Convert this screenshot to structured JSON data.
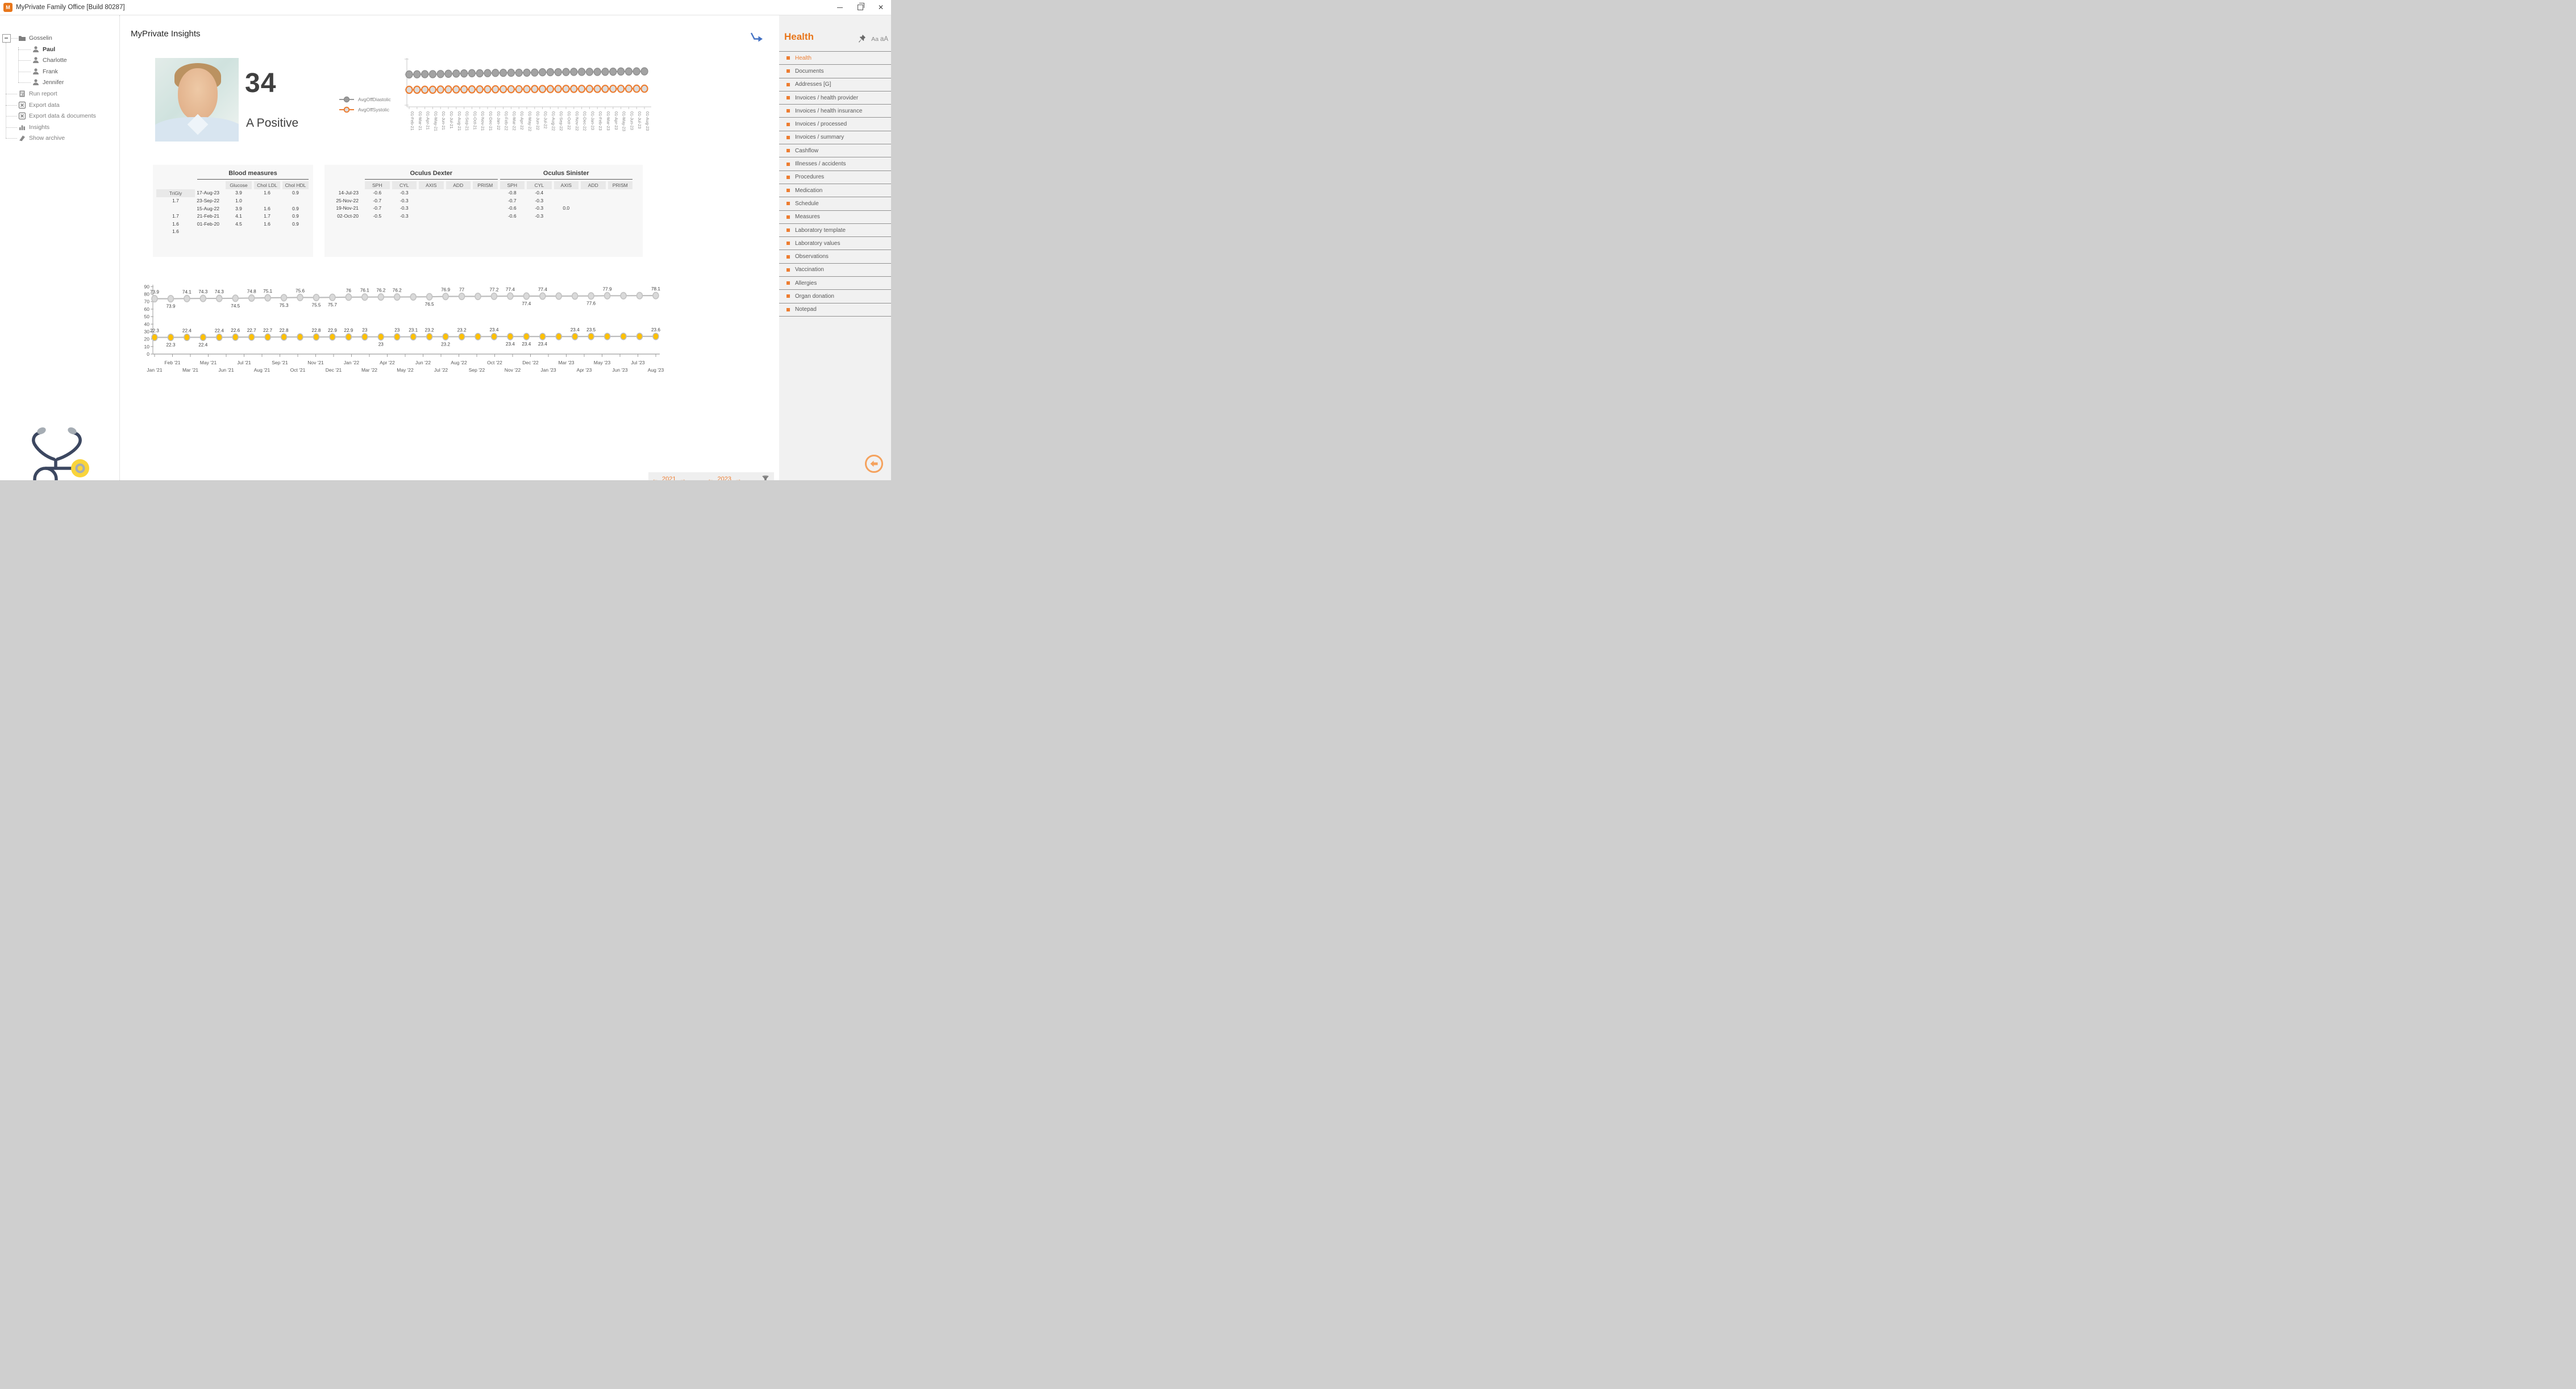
{
  "window": {
    "title": "MyPrivate Family Office [Build 80287]",
    "app_icon_text": "M",
    "controls": {
      "minimize": "minimize",
      "restore": "restore",
      "close": "close"
    }
  },
  "tree": {
    "root": "Gosselin",
    "members": [
      "Paul",
      "Charlotte",
      "Frank",
      "Jennifer"
    ],
    "selected_member": "Paul",
    "actions": [
      "Run report",
      "Export data",
      "Export data & documents",
      "Insights",
      "Show archive"
    ]
  },
  "canvas": {
    "title": "MyPrivate Insights",
    "age": "34",
    "blood_type": "A Positive"
  },
  "colors": {
    "accent_orange": "#ED7D31",
    "heading_orange": "#E8761B",
    "series_gray": "#A3A3A3",
    "marker_yellow": "#FFC000",
    "label_dark": "#404040",
    "muted_gray": "#7F7F7F"
  },
  "chart_data": [
    {
      "type": "line",
      "name": "blood-pressure-summary",
      "legend_position": "left",
      "legend": [
        {
          "label": "AvgOffDiastolic",
          "color": "#9A9A9A"
        },
        {
          "label": "AvgOffSystolic",
          "color": "#ED7D31"
        }
      ],
      "x": [
        "01-Feb-21",
        "01-Mar-21",
        "01-Apr-21",
        "01-May-21",
        "01-Jun-21",
        "01-Jul-21",
        "01-Aug-21",
        "01-Sep-21",
        "01-Oct-21",
        "01-Nov-21",
        "01-Dec-21",
        "01-Jan-22",
        "01-Feb-22",
        "01-Mar-22",
        "01-Apr-22",
        "01-May-22",
        "01-Jun-22",
        "01-Jul-22",
        "01-Aug-22",
        "01-Sep-22",
        "01-Oct-22",
        "01-Nov-22",
        "01-Dec-22",
        "01-Jan-23",
        "01-Feb-23",
        "01-Mar-23",
        "01-Apr-23",
        "01-May-23",
        "01-Jun-23",
        "01-Jul-23",
        "01-Aug-23"
      ],
      "series": [
        {
          "name": "AvgOffDiastolic",
          "values": [
            73.9,
            74.1,
            74.3,
            74.3,
            74.5,
            74.8,
            75.1,
            75.3,
            75.6,
            75.5,
            75.7,
            76.0,
            76.1,
            76.2,
            76.2,
            76.3,
            76.5,
            76.9,
            77.0,
            77.0,
            77.2,
            77.4,
            77.4,
            77.4,
            77.4,
            77.5,
            77.6,
            77.9,
            77.9,
            78.0,
            78.1
          ]
        },
        {
          "name": "AvgOffSystolic",
          "values": [
            22.3,
            22.4,
            22.4,
            22.4,
            22.6,
            22.7,
            22.7,
            22.8,
            22.8,
            22.8,
            22.9,
            22.9,
            23.0,
            23.0,
            23.0,
            23.1,
            23.2,
            23.2,
            23.2,
            23.3,
            23.4,
            23.4,
            23.4,
            23.4,
            23.4,
            23.4,
            23.5,
            23.5,
            23.6,
            23.6,
            23.6
          ]
        }
      ],
      "grid": false,
      "y_tick_labels_visible": false
    },
    {
      "type": "line",
      "name": "measures-by-month",
      "ylim": [
        0,
        90
      ],
      "yticks": [
        0,
        10,
        20,
        30,
        40,
        50,
        60,
        70,
        80,
        90
      ],
      "x_row_upper": [
        "Feb '21",
        "May '21",
        "Jul '21",
        "Sep '21",
        "Nov '21",
        "Jan '22",
        "Apr '22",
        "Jun '22",
        "Aug '22",
        "Oct '22",
        "Dec '22",
        "Mar '23",
        "May '23",
        "Jul '23"
      ],
      "x_row_lower": [
        "Jan '21",
        "Mar '21",
        "Jun '21",
        "Aug '21",
        "Oct '21",
        "Dec '21",
        "Mar '22",
        "May '22",
        "Jul '22",
        "Sep '22",
        "Nov '22",
        "Jan '23",
        "Apr '23",
        "Jun '23",
        "Aug '23"
      ],
      "grid": false,
      "series": [
        {
          "name": "diastolic",
          "marker_fill": "#D9D9D9",
          "marker_stroke": "#C2C2C2",
          "line_color": "#BDBDBD",
          "values": [
            73.9,
            73.9,
            74.1,
            74.3,
            74.3,
            74.5,
            74.8,
            75.1,
            75.3,
            75.6,
            75.5,
            75.7,
            76.0,
            76.1,
            76.2,
            76.2,
            76.3,
            76.5,
            76.9,
            77.0,
            77.0,
            77.2,
            77.4,
            77.4,
            77.4,
            77.4,
            77.5,
            77.6,
            77.9,
            77.9,
            78.0,
            78.1
          ],
          "labels": [
            "73.9",
            "73.9",
            "74.1",
            "74.3",
            "74.3",
            "74.5",
            "74.8",
            "75.1",
            "75.3",
            "75.6",
            "75.5",
            "75.7",
            "76",
            "76.1",
            "76.2",
            "76.2",
            null,
            "76.5",
            "76.9",
            "77",
            null,
            "77.2",
            "77.4",
            "77.4",
            "77.4",
            null,
            null,
            "77.6",
            "77.9",
            null,
            null,
            "78.1"
          ],
          "label_pos": [
            "a",
            "b",
            "a",
            "a",
            "a",
            "b",
            "a",
            "a",
            "b",
            "a",
            "b",
            "b",
            "a",
            "a",
            "a",
            "a",
            null,
            "b",
            "a",
            "a",
            null,
            "a",
            "a",
            "b",
            "a",
            null,
            null,
            "b",
            "a",
            null,
            null,
            "a"
          ]
        },
        {
          "name": "systolic",
          "marker_fill": "#FFC000",
          "marker_stroke": "#BDBDBD",
          "line_color": "#BDBDBD",
          "values": [
            22.3,
            22.3,
            22.4,
            22.4,
            22.4,
            22.6,
            22.7,
            22.7,
            22.8,
            22.8,
            22.8,
            22.9,
            22.9,
            23.0,
            23.0,
            23.0,
            23.1,
            23.2,
            23.2,
            23.2,
            23.3,
            23.4,
            23.4,
            23.4,
            23.4,
            23.4,
            23.4,
            23.5,
            23.5,
            23.6,
            23.6,
            23.6
          ],
          "labels": [
            "22.3",
            "22.3",
            "22.4",
            "22.4",
            "22.4",
            "22.6",
            "22.7",
            "22.7",
            "22.8",
            null,
            "22.8",
            "22.9",
            "22.9",
            "23",
            "23",
            "23",
            "23.1",
            "23.2",
            "23.2",
            "23.2",
            null,
            "23.4",
            "23.4",
            "23.4",
            "23.4",
            null,
            "23.4",
            "23.5",
            null,
            null,
            null,
            "23.6"
          ],
          "label_pos": [
            "a",
            "b",
            "a",
            "b",
            "a",
            "a",
            "a",
            "a",
            "a",
            null,
            "a",
            "a",
            "a",
            "a",
            "b",
            "a",
            "a",
            "a",
            "b",
            "a",
            null,
            "a",
            "b",
            "b",
            "b",
            null,
            "a",
            "a",
            null,
            null,
            null,
            "a"
          ]
        }
      ]
    }
  ],
  "tables": {
    "blood": {
      "title": "Blood measures",
      "headers": [
        "Glucose",
        "Chol LDL",
        "Chol HDL",
        "TriGly"
      ],
      "rows": [
        {
          "date": "17-Aug-23",
          "values": [
            "3.9",
            "1.6",
            "0.9",
            "1.7"
          ]
        },
        {
          "date": "23-Sep-22",
          "values": [
            "1.0",
            "",
            "",
            ""
          ]
        },
        {
          "date": "15-Aug-22",
          "values": [
            "3.9",
            "1.6",
            "0.9",
            "1.7"
          ]
        },
        {
          "date": "21-Feb-21",
          "values": [
            "4.1",
            "1.7",
            "0.9",
            "1.6"
          ]
        },
        {
          "date": "01-Feb-20",
          "values": [
            "4.5",
            "1.6",
            "0.9",
            "1.6"
          ]
        }
      ]
    },
    "oculus": {
      "dexter_title": "Oculus Dexter",
      "sinister_title": "Oculus Sinister",
      "headers": [
        "SPH",
        "CYL",
        "AXIS",
        "ADD",
        "PRISM"
      ],
      "rows": [
        {
          "date": "14-Jul-23",
          "dexter": [
            "-0.6",
            "-0.3",
            "",
            "",
            ""
          ],
          "sinister": [
            "-0.8",
            "-0.4",
            "",
            "",
            ""
          ]
        },
        {
          "date": "25-Nov-22",
          "dexter": [
            "-0.7",
            "-0.3",
            "",
            "",
            ""
          ],
          "sinister": [
            "-0.7",
            "-0.3",
            "",
            "",
            ""
          ]
        },
        {
          "date": "19-Nov-21",
          "dexter": [
            "-0.7",
            "-0.3",
            "",
            "",
            ""
          ],
          "sinister": [
            "-0.6",
            "-0.3",
            "0.0",
            "",
            ""
          ]
        },
        {
          "date": "02-Oct-20",
          "dexter": [
            "-0.5",
            "-0.3",
            "",
            "",
            ""
          ],
          "sinister": [
            "-0.6",
            "-0.3",
            "",
            "",
            ""
          ]
        }
      ]
    }
  },
  "pagination": {
    "left_prev": "←",
    "left_year": "2021",
    "left_next": "→",
    "right_prev": "←",
    "right_year": "2023",
    "right_next": "→"
  },
  "sidebar": {
    "title": "Health",
    "font_buttons": [
      "Aa",
      "aA"
    ],
    "selected": "Health",
    "items": [
      "Health",
      "Documents",
      "Addresses [G]",
      "Invoices / health provider",
      "Invoices / health insurance",
      "Invoices / processed",
      "Invoices / summary",
      "Cashflow",
      "Illnesses / accidents",
      "Procedures",
      "Medication",
      "Schedule",
      "Measures",
      "Laboratory template",
      "Laboratory values",
      "Observations",
      "Vaccination",
      "Allergies",
      "Organ donation",
      "Notepad"
    ]
  }
}
